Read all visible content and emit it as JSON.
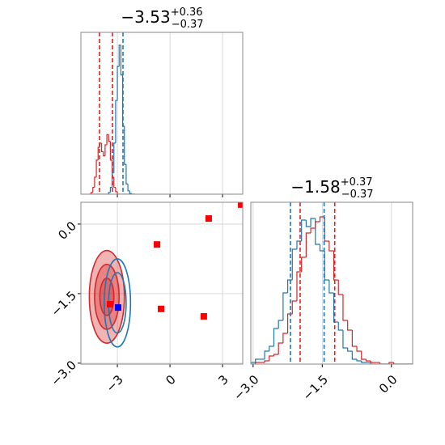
{
  "chart_data": [
    {
      "type": "histogram",
      "title": {
        "main": "−3.53",
        "sup": "+0.36",
        "sub": "−0.37"
      },
      "bins": [
        -4.6,
        -4.5,
        -4.4,
        -4.3,
        -4.2,
        -4.1,
        -4.0,
        -3.9,
        -3.8,
        -3.7,
        -3.6,
        -3.5,
        -3.4,
        -3.3,
        -3.2,
        -3.1,
        -3.0,
        -2.9,
        -2.8,
        -2.7,
        -2.6,
        -2.5,
        -2.4,
        -2.3,
        -2.2,
        -2.1,
        -2.0
      ],
      "series": [
        {
          "color": "#d62728",
          "values": [
            0,
            2,
            8,
            20,
            40,
            55,
            60,
            50,
            45,
            58,
            70,
            62,
            40,
            20,
            8,
            3,
            0,
            0,
            0,
            0,
            0,
            0,
            0,
            0,
            0,
            0
          ]
        },
        {
          "color": "#1f77b4",
          "values": [
            0,
            0,
            0,
            0,
            0,
            0,
            0,
            0,
            0,
            0,
            0,
            2,
            8,
            25,
            60,
            110,
            150,
            175,
            140,
            80,
            35,
            12,
            4,
            1,
            0,
            0
          ]
        }
      ],
      "quantiles": [
        {
          "color": "#d62728",
          "values": [
            -4.02,
            -3.28
          ]
        },
        {
          "color": "#1f77b4",
          "values": [
            -2.68
          ]
        }
      ],
      "xlim": [
        -5.08,
        4.15
      ],
      "ylim": [
        0,
        190
      ],
      "xticks": [
        {
          "value": -3,
          "label": "−3"
        },
        0,
        3
      ],
      "grid": true
    },
    {
      "type": "scatter",
      "contours": [
        {
          "color": "#d62728",
          "fill": true,
          "x": -3.6,
          "y": -1.57,
          "rx": [
            1.0,
            0.7,
            0.4
          ],
          "ry": [
            1.0,
            0.7,
            0.4
          ]
        },
        {
          "color": "#1f77b4",
          "fill": false,
          "x": -3.0,
          "y": -1.7,
          "rx": [
            0.75,
            0.5
          ],
          "ry": [
            0.95,
            0.65
          ]
        }
      ],
      "points": [
        {
          "color": "#ff0000",
          "x": [
            -0.74,
            2.21,
            4.06,
            -0.51,
            1.93,
            -3.42
          ],
          "y": [
            -0.44,
            0.12,
            0.42,
            -1.83,
            -1.99,
            -1.73
          ]
        },
        {
          "color": "#0000ff",
          "x": [
            -2.96
          ],
          "y": [
            -1.8
          ]
        }
      ],
      "xlim": [
        -5.08,
        4.15
      ],
      "ylim": [
        -3.02,
        0.47
      ],
      "xticks": [
        {
          "value": -3,
          "label": "−3"
        },
        {
          "value": 0,
          "label": "0"
        },
        {
          "value": 3,
          "label": "3"
        }
      ],
      "yticks": [
        {
          "value": -3.0,
          "label": "−3.0"
        },
        {
          "value": -1.5,
          "label": "−1.5"
        },
        {
          "value": 0.0,
          "label": "0.0"
        }
      ],
      "grid": true
    },
    {
      "type": "histogram",
      "title": {
        "main": "−1.58",
        "sup": "+0.37",
        "sub": "−0.37"
      },
      "bins": [
        -3.05,
        -2.95,
        -2.85,
        -2.75,
        -2.65,
        -2.55,
        -2.45,
        -2.35,
        -2.25,
        -2.15,
        -2.05,
        -1.95,
        -1.85,
        -1.75,
        -1.65,
        -1.55,
        -1.45,
        -1.35,
        -1.25,
        -1.15,
        -1.05,
        -0.95,
        -0.85,
        -0.75,
        -0.65,
        -0.55,
        -0.45,
        -0.35,
        -0.25,
        -0.15,
        -0.05,
        0.05,
        0.15,
        0.25,
        0.35,
        0.45
      ],
      "series": [
        {
          "color": "#1f77b4",
          "values": [
            1,
            3,
            3,
            8,
            11,
            22,
            27,
            44,
            52,
            71,
            76,
            89,
            85,
            90,
            74,
            70,
            52,
            44,
            26,
            21,
            10,
            8,
            3,
            2,
            1,
            1,
            0,
            0,
            0,
            0,
            0,
            0,
            0,
            0,
            0
          ]
        },
        {
          "color": "#d62728",
          "values": [
            0,
            1,
            1,
            2,
            5,
            6,
            13,
            19,
            31,
            39,
            57,
            66,
            81,
            84,
            88,
            91,
            76,
            70,
            52,
            43,
            27,
            21,
            11,
            8,
            3,
            2,
            1,
            1,
            0,
            0,
            1,
            0,
            0,
            0,
            0
          ]
        }
      ],
      "quantiles": [
        {
          "color": "#1f77b4",
          "values": [
            -2.19,
            -1.46
          ]
        },
        {
          "color": "#d62728",
          "values": [
            -1.98,
            -1.23
          ]
        }
      ],
      "xlim": [
        -3.05,
        0.46
      ],
      "ylim": [
        0,
        100
      ],
      "xticks": [
        {
          "value": -3.0,
          "label": "−3.0"
        },
        {
          "value": -1.5,
          "label": "−1.5"
        },
        {
          "value": 0.0,
          "label": "0.0"
        }
      ],
      "grid": true
    }
  ]
}
